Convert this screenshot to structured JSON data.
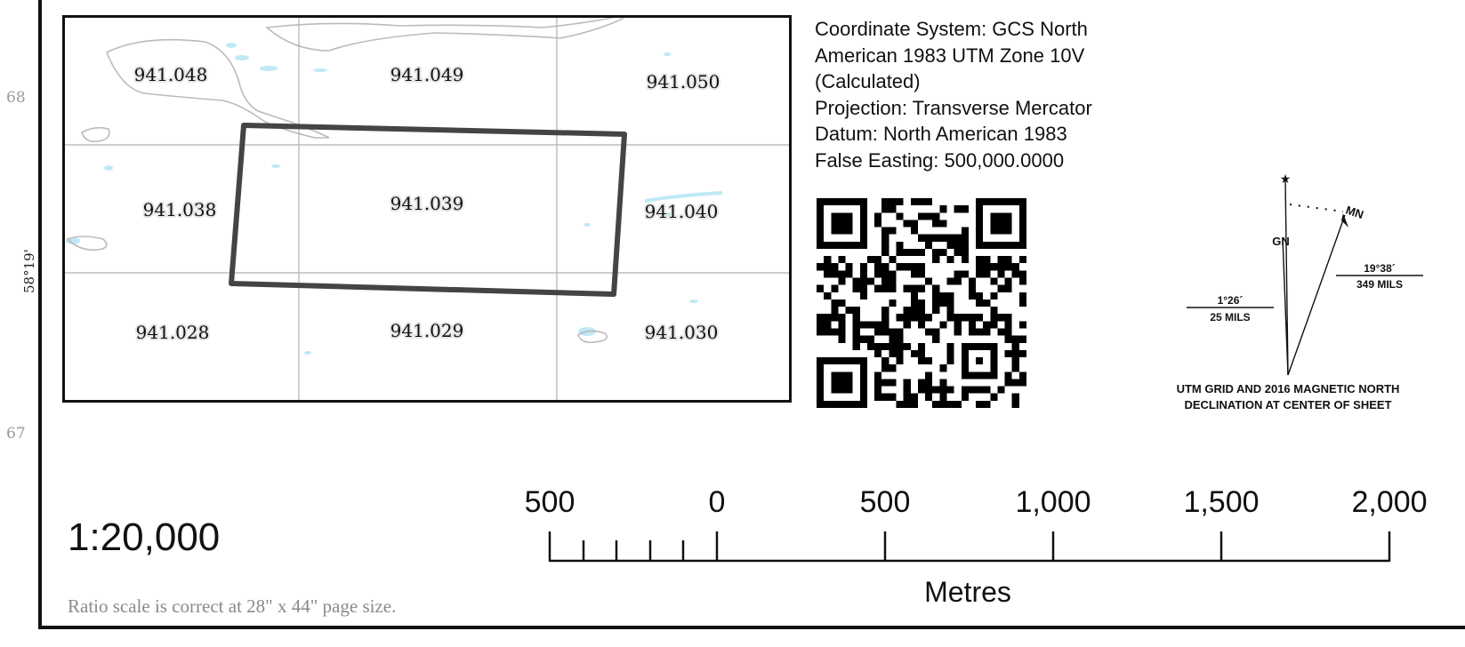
{
  "edge_labels": {
    "north_left": "68",
    "south_left": "67",
    "latitude": "58°19'"
  },
  "index_map": {
    "sheets": [
      {
        "id": "941.048"
      },
      {
        "id": "941.049"
      },
      {
        "id": "941.050"
      },
      {
        "id": "941.038"
      },
      {
        "id": "941.039"
      },
      {
        "id": "941.040"
      },
      {
        "id": "941.028"
      },
      {
        "id": "941.029"
      },
      {
        "id": "941.030"
      }
    ],
    "current_sheet": "941.039"
  },
  "coordinate_info": [
    "Coordinate System: GCS North",
    "American 1983 UTM Zone 10V",
    "(Calculated)",
    "Projection: Transverse Mercator",
    "Datum: North American 1983",
    "False Easting: 500,000.0000"
  ],
  "qr_icon": "qr-code-icon",
  "declination": {
    "gn_label": "GN",
    "mn_label": "MN",
    "grid_angle": "1°26´",
    "grid_mils": "25 MILS",
    "magnetic_angle": "19°38´",
    "magnetic_mils": "349 MILS",
    "caption_line1": "UTM GRID AND 2016 MAGNETIC NORTH",
    "caption_line2": "DECLINATION AT CENTER OF SHEET"
  },
  "scale": {
    "ratio": "1:20,000",
    "note": "Ratio scale is correct at 28\" x 44\" page size.",
    "tick_labels": [
      "500",
      "0",
      "500",
      "1,000",
      "1,500",
      "2,000"
    ],
    "unit": "Metres"
  },
  "colors": {
    "water": "#bfe9f5",
    "coastline": "#bbbbbb",
    "grid": "#b0b0b0",
    "highlight": "#444444",
    "ink": "#111111"
  }
}
